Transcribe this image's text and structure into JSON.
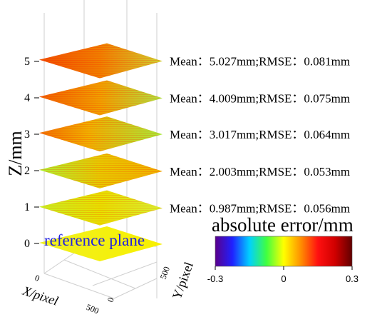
{
  "chart_data": {
    "type": "3d-surface-stack",
    "zlabel": "Z/mm",
    "xlabel": "X/pixel",
    "ylabel": "Y/pixel",
    "z_ticks": [
      "0",
      "1",
      "2",
      "3",
      "4",
      "5"
    ],
    "x_ticks": [
      "0",
      "500"
    ],
    "y_ticks": [
      "0",
      "500"
    ],
    "reference_label": "reference plane",
    "planes": [
      {
        "z": 0,
        "label": ""
      },
      {
        "z": 0.987,
        "label": "Mean：0.987mm;RMSE：0.056mm"
      },
      {
        "z": 2.003,
        "label": "Mean：2.003mm;RMSE：0.053mm"
      },
      {
        "z": 3.017,
        "label": "Mean：3.017mm;RMSE：0.064mm"
      },
      {
        "z": 4.009,
        "label": "Mean：4.009mm;RMSE：0.075mm"
      },
      {
        "z": 5.027,
        "label": "Mean：5.027mm;RMSE：0.081mm"
      }
    ],
    "colorbar": {
      "title": "absolute error/mm",
      "ticks": [
        "-0.3",
        "0",
        "0.3"
      ],
      "range": [
        -0.3,
        0.3
      ],
      "colors": [
        "#5a008c",
        "#2020ff",
        "#00d0ff",
        "#40ff40",
        "#ffff00",
        "#ff9000",
        "#ff1010",
        "#d00000",
        "#600000"
      ]
    },
    "zlim": [
      0,
      5
    ],
    "grid": true
  }
}
